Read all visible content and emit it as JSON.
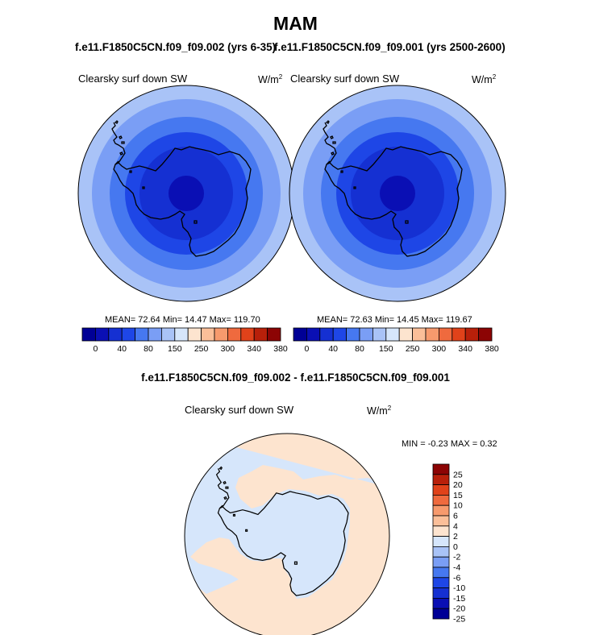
{
  "figure": {
    "season": "MAM",
    "left_case_title": "f.e11.F1850C5CN.f09_f09.002 (yrs 6-35)",
    "right_case_title": "f.e11.F1850C5CN.f09_f09.001 (yrs 2500-2600)",
    "diff_title": "f.e11.F1850C5CN.f09_f09.002 - f.e11.F1850C5CN.f09_f09.001"
  },
  "panels": {
    "left": {
      "variable": "Clearsky surf down SW",
      "units_base": "W/m",
      "units_exp": "2",
      "stats": "MEAN=  72.64  Min=  14.47  Max= 119.70"
    },
    "right": {
      "variable": "Clearsky surf down SW",
      "units_base": "W/m",
      "units_exp": "2",
      "stats": "MEAN=  72.63  Min=  14.45  Max= 119.67"
    },
    "diff": {
      "variable": "Clearsky surf down SW",
      "units_base": "W/m",
      "units_exp": "2",
      "stats": "MIN =  -0.23 MAX =   0.32"
    }
  },
  "colorbar_horizontal": {
    "colors": [
      "#000096",
      "#0a0fb4",
      "#1530d2",
      "#1e46e6",
      "#4678f0",
      "#7a9ef5",
      "#a9c3f7",
      "#d6e6fb",
      "#fde4cf",
      "#fbbf99",
      "#f79a6d",
      "#ef6a3e",
      "#e0421a",
      "#b8200a",
      "#8c0404"
    ],
    "ticks": [
      "0",
      "40",
      "80",
      "150",
      "250",
      "300",
      "340",
      "380"
    ],
    "tick_boundaries": [
      1,
      3,
      5,
      7,
      9,
      11,
      13,
      15
    ]
  },
  "colorbar_vertical": {
    "colors_top_to_bottom": [
      "#8c0404",
      "#b8200a",
      "#e0421a",
      "#ef6a3e",
      "#f79a6d",
      "#fbbf99",
      "#fde4cf",
      "#d6e6fb",
      "#a9c3f7",
      "#7a9ef5",
      "#4678f0",
      "#1e46e6",
      "#1530d2",
      "#0a0fb4",
      "#000096"
    ],
    "ticks_top_to_bottom": [
      "25",
      "20",
      "15",
      "10",
      "6",
      "4",
      "2",
      "0",
      "-2",
      "-4",
      "-6",
      "-10",
      "-15",
      "-20",
      "-25"
    ]
  },
  "map_colors": {
    "ring_colors_outer_to_inner": [
      "#a9c3f7",
      "#7a9ef5",
      "#4678f0",
      "#1e46e6",
      "#1530d2",
      "#0a0fb4"
    ],
    "diff_positive": "#fde4cf",
    "diff_negative": "#d6e6fb",
    "coastline": "#000000"
  },
  "chart_data": [
    {
      "type": "heatmap",
      "title": "Clearsky surf down SW",
      "subtitle": "f.e11.F1850C5CN.f09_f09.002 (yrs 6-35)",
      "units": "W/m2",
      "projection": "south polar stereographic",
      "mean": 72.64,
      "min": 14.47,
      "max": 119.7,
      "levels": [
        0,
        40,
        80,
        150,
        250,
        300,
        340,
        380
      ]
    },
    {
      "type": "heatmap",
      "title": "Clearsky surf down SW",
      "subtitle": "f.e11.F1850C5CN.f09_f09.001 (yrs 2500-2600)",
      "units": "W/m2",
      "projection": "south polar stereographic",
      "mean": 72.63,
      "min": 14.45,
      "max": 119.67,
      "levels": [
        0,
        40,
        80,
        150,
        250,
        300,
        340,
        380
      ]
    },
    {
      "type": "heatmap",
      "title": "Clearsky surf down SW",
      "subtitle": "f.e11.F1850C5CN.f09_f09.002 - f.e11.F1850C5CN.f09_f09.001",
      "units": "W/m2",
      "projection": "south polar stereographic",
      "min": -0.23,
      "max": 0.32,
      "levels": [
        -25,
        -20,
        -15,
        -10,
        -6,
        -4,
        -2,
        0,
        2,
        4,
        6,
        10,
        15,
        20,
        25
      ]
    }
  ]
}
